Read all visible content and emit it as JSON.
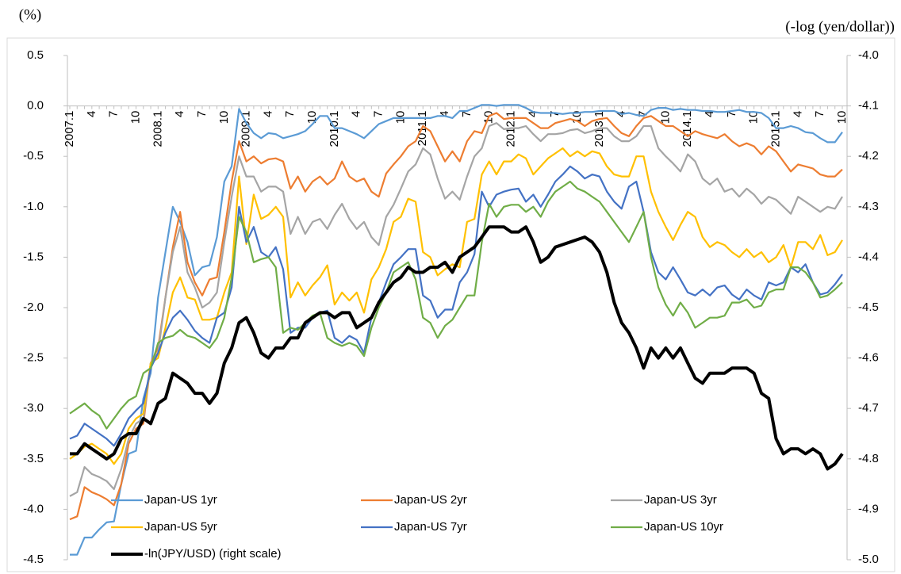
{
  "chart_data": {
    "type": "line",
    "y_label": "(%)",
    "y2_label": "(-log (yen/dollar))",
    "categories": [
      "2007.1",
      null,
      null,
      "4",
      null,
      null,
      "7",
      null,
      null,
      "10",
      null,
      null,
      "2008.1",
      null,
      null,
      "4",
      null,
      null,
      "7",
      null,
      null,
      "10",
      null,
      null,
      "2009.1",
      null,
      null,
      "4",
      null,
      null,
      "7",
      null,
      null,
      "10",
      null,
      null,
      "2010.1",
      null,
      null,
      "4",
      null,
      null,
      "7",
      null,
      null,
      "10",
      null,
      null,
      "2011.1",
      null,
      null,
      "4",
      null,
      null,
      "7",
      null,
      null,
      "10",
      null,
      null,
      "2012.1",
      null,
      null,
      "4",
      null,
      null,
      "7",
      null,
      null,
      "10",
      null,
      null,
      "2013.1",
      null,
      null,
      "4",
      null,
      null,
      "7",
      null,
      null,
      "10",
      null,
      null,
      "2014.1",
      null,
      null,
      "4",
      null,
      null,
      "7",
      null,
      null,
      "10",
      null,
      null,
      "2015.1",
      null,
      null,
      "4",
      null,
      null,
      "7",
      null,
      null,
      "10"
    ],
    "series": [
      {
        "name": "Japan-US 1yr",
        "color": "#5b9bd5",
        "values": [
          -4.45,
          -4.45,
          -4.28,
          -4.28,
          -4.2,
          -4.13,
          -4.12,
          -3.75,
          -3.45,
          -3.42,
          -2.9,
          -2.65,
          -1.9,
          -1.45,
          -1.0,
          -1.15,
          -1.35,
          -1.68,
          -1.6,
          -1.58,
          -1.3,
          -0.75,
          -0.6,
          -0.03,
          -0.17,
          -0.27,
          -0.32,
          -0.27,
          -0.28,
          -0.32,
          -0.3,
          -0.28,
          -0.25,
          -0.18,
          -0.1,
          -0.1,
          -0.22,
          -0.22,
          -0.25,
          -0.28,
          -0.32,
          -0.25,
          -0.18,
          -0.15,
          -0.12,
          -0.12,
          -0.12,
          -0.12,
          -0.12,
          -0.12,
          -0.1,
          -0.1,
          -0.12,
          -0.05,
          -0.05,
          -0.02,
          0.01,
          0.01,
          0.0,
          0.01,
          0.01,
          0.01,
          -0.02,
          -0.06,
          -0.07,
          -0.07,
          -0.07,
          -0.08,
          -0.07,
          -0.07,
          -0.06,
          -0.06,
          -0.05,
          -0.05,
          -0.05,
          -0.08,
          -0.07,
          -0.09,
          -0.1,
          -0.04,
          -0.02,
          -0.02,
          -0.04,
          -0.03,
          -0.04,
          -0.04,
          -0.05,
          -0.05,
          -0.06,
          -0.06,
          -0.05,
          -0.04,
          -0.06,
          -0.06,
          -0.07,
          -0.12,
          -0.22,
          -0.22,
          -0.2,
          -0.22,
          -0.26,
          -0.27,
          -0.32,
          -0.36,
          -0.36,
          -0.26
        ]
      },
      {
        "name": "Japan-US 2yr",
        "color": "#ed7d31",
        "values": [
          -4.1,
          -4.07,
          -3.78,
          -3.83,
          -3.86,
          -3.9,
          -3.96,
          -3.75,
          -3.35,
          -3.2,
          -3.15,
          -2.55,
          -2.4,
          -1.9,
          -1.4,
          -1.05,
          -1.55,
          -1.75,
          -1.88,
          -1.72,
          -1.7,
          -1.25,
          -0.75,
          -0.35,
          -0.55,
          -0.5,
          -0.57,
          -0.53,
          -0.52,
          -0.55,
          -0.82,
          -0.7,
          -0.85,
          -0.75,
          -0.7,
          -0.78,
          -0.72,
          -0.55,
          -0.7,
          -0.75,
          -0.72,
          -0.85,
          -0.9,
          -0.67,
          -0.58,
          -0.5,
          -0.4,
          -0.35,
          -0.2,
          -0.25,
          -0.4,
          -0.55,
          -0.45,
          -0.55,
          -0.35,
          -0.25,
          -0.27,
          -0.1,
          -0.07,
          -0.13,
          -0.12,
          -0.12,
          -0.12,
          -0.17,
          -0.22,
          -0.22,
          -0.17,
          -0.15,
          -0.13,
          -0.15,
          -0.2,
          -0.15,
          -0.13,
          -0.12,
          -0.2,
          -0.27,
          -0.3,
          -0.2,
          -0.12,
          -0.1,
          -0.15,
          -0.2,
          -0.2,
          -0.25,
          -0.3,
          -0.25,
          -0.28,
          -0.3,
          -0.32,
          -0.28,
          -0.35,
          -0.4,
          -0.37,
          -0.4,
          -0.48,
          -0.4,
          -0.45,
          -0.55,
          -0.65,
          -0.58,
          -0.6,
          -0.62,
          -0.68,
          -0.7,
          -0.7,
          -0.63
        ]
      },
      {
        "name": "Japan-US 3yr",
        "color": "#a5a5a5",
        "values": [
          -3.87,
          -3.83,
          -3.58,
          -3.65,
          -3.68,
          -3.72,
          -3.8,
          -3.6,
          -3.3,
          -3.15,
          -3.1,
          -2.55,
          -2.45,
          -1.9,
          -1.45,
          -1.2,
          -1.65,
          -1.8,
          -2.0,
          -1.95,
          -1.85,
          -1.35,
          -0.9,
          -0.5,
          -0.7,
          -0.7,
          -0.85,
          -0.8,
          -0.8,
          -0.85,
          -1.27,
          -1.1,
          -1.27,
          -1.15,
          -1.12,
          -1.22,
          -1.08,
          -0.97,
          -1.12,
          -1.22,
          -1.15,
          -1.3,
          -1.38,
          -1.1,
          -0.98,
          -0.82,
          -0.65,
          -0.58,
          -0.42,
          -0.48,
          -0.72,
          -0.92,
          -0.85,
          -0.93,
          -0.7,
          -0.5,
          -0.42,
          -0.2,
          -0.17,
          -0.23,
          -0.22,
          -0.22,
          -0.2,
          -0.28,
          -0.35,
          -0.28,
          -0.28,
          -0.27,
          -0.24,
          -0.23,
          -0.27,
          -0.25,
          -0.22,
          -0.22,
          -0.3,
          -0.35,
          -0.35,
          -0.3,
          -0.2,
          -0.2,
          -0.42,
          -0.5,
          -0.57,
          -0.65,
          -0.48,
          -0.55,
          -0.72,
          -0.78,
          -0.72,
          -0.85,
          -0.82,
          -0.9,
          -0.82,
          -0.88,
          -0.97,
          -0.9,
          -0.93,
          -1.0,
          -1.07,
          -0.9,
          -0.95,
          -1.0,
          -1.05,
          -1.0,
          -1.02,
          -0.9
        ]
      },
      {
        "name": "Japan-US 5yr",
        "color": "#ffc000",
        "values": [
          -3.5,
          -3.45,
          -3.38,
          -3.35,
          -3.4,
          -3.45,
          -3.55,
          -3.45,
          -3.2,
          -3.1,
          -3.05,
          -2.55,
          -2.5,
          -2.2,
          -1.85,
          -1.7,
          -1.9,
          -1.92,
          -2.12,
          -2.12,
          -2.1,
          -1.85,
          -1.65,
          -0.7,
          -1.37,
          -0.88,
          -1.12,
          -1.08,
          -1.0,
          -1.1,
          -1.9,
          -1.75,
          -1.88,
          -1.78,
          -1.7,
          -1.58,
          -1.97,
          -1.85,
          -1.93,
          -1.85,
          -2.05,
          -1.72,
          -1.6,
          -1.42,
          -1.15,
          -1.1,
          -0.92,
          -0.95,
          -1.45,
          -1.5,
          -1.68,
          -1.62,
          -1.57,
          -1.6,
          -1.15,
          -1.12,
          -0.68,
          -0.55,
          -0.68,
          -0.55,
          -0.55,
          -0.48,
          -0.52,
          -0.68,
          -0.6,
          -0.52,
          -0.47,
          -0.42,
          -0.5,
          -0.45,
          -0.5,
          -0.45,
          -0.47,
          -0.6,
          -0.68,
          -0.7,
          -0.7,
          -0.5,
          -0.5,
          -0.85,
          -1.05,
          -1.2,
          -1.33,
          -1.18,
          -1.05,
          -1.1,
          -1.3,
          -1.4,
          -1.35,
          -1.38,
          -1.45,
          -1.5,
          -1.42,
          -1.5,
          -1.45,
          -1.55,
          -1.5,
          -1.38,
          -1.6,
          -1.35,
          -1.35,
          -1.42,
          -1.28,
          -1.48,
          -1.45,
          -1.33
        ]
      },
      {
        "name": "Japan-US 7yr",
        "color": "#4472c4",
        "values": [
          -3.3,
          -3.27,
          -3.15,
          -3.2,
          -3.25,
          -3.3,
          -3.37,
          -3.25,
          -3.1,
          -3.02,
          -2.95,
          -2.6,
          -2.45,
          -2.25,
          -2.1,
          -2.03,
          -2.12,
          -2.23,
          -2.3,
          -2.35,
          -2.1,
          -2.05,
          -1.8,
          -1.0,
          -1.35,
          -1.2,
          -1.45,
          -1.5,
          -1.4,
          -1.62,
          -2.25,
          -2.2,
          -2.2,
          -2.1,
          -2.05,
          -2.03,
          -2.3,
          -2.35,
          -2.28,
          -2.32,
          -2.45,
          -2.1,
          -1.95,
          -1.75,
          -1.57,
          -1.5,
          -1.42,
          -1.42,
          -1.88,
          -1.93,
          -2.1,
          -2.02,
          -2.02,
          -1.75,
          -1.65,
          -1.47,
          -0.85,
          -1.0,
          -0.88,
          -0.85,
          -0.83,
          -0.82,
          -0.95,
          -0.88,
          -1.0,
          -0.88,
          -0.75,
          -0.68,
          -0.6,
          -0.65,
          -0.72,
          -0.68,
          -0.7,
          -0.85,
          -0.95,
          -1.02,
          -0.8,
          -0.75,
          -1.05,
          -1.45,
          -1.65,
          -1.72,
          -1.6,
          -1.72,
          -1.85,
          -1.88,
          -1.82,
          -1.88,
          -1.8,
          -1.78,
          -1.87,
          -1.92,
          -1.82,
          -1.88,
          -1.92,
          -1.75,
          -1.78,
          -1.75,
          -1.6,
          -1.65,
          -1.57,
          -1.75,
          -1.87,
          -1.85,
          -1.77,
          -1.67
        ]
      },
      {
        "name": "Japan-US 10yr",
        "color": "#70ad47",
        "values": [
          -3.05,
          -3.0,
          -2.95,
          -3.02,
          -3.07,
          -3.2,
          -3.1,
          -3.0,
          -2.92,
          -2.88,
          -2.65,
          -2.6,
          -2.35,
          -2.3,
          -2.28,
          -2.22,
          -2.28,
          -2.3,
          -2.35,
          -2.4,
          -2.3,
          -2.1,
          -1.7,
          -1.1,
          -1.25,
          -1.55,
          -1.52,
          -1.5,
          -1.6,
          -2.25,
          -2.2,
          -2.22,
          -2.15,
          -2.08,
          -2.05,
          -2.3,
          -2.35,
          -2.38,
          -2.35,
          -2.38,
          -2.48,
          -2.2,
          -2.0,
          -1.85,
          -1.65,
          -1.6,
          -1.55,
          -1.72,
          -2.1,
          -2.15,
          -2.3,
          -2.18,
          -2.12,
          -2.0,
          -1.88,
          -1.88,
          -1.35,
          -0.97,
          -1.1,
          -1.0,
          -0.98,
          -0.98,
          -1.05,
          -1.0,
          -1.1,
          -0.95,
          -0.85,
          -0.8,
          -0.75,
          -0.82,
          -0.85,
          -0.9,
          -0.95,
          -1.05,
          -1.15,
          -1.25,
          -1.35,
          -1.2,
          -1.05,
          -1.5,
          -1.8,
          -1.97,
          -2.08,
          -1.95,
          -2.05,
          -2.2,
          -2.15,
          -2.1,
          -2.1,
          -2.08,
          -1.95,
          -1.95,
          -1.92,
          -2.0,
          -1.98,
          -1.85,
          -1.82,
          -1.82,
          -1.6,
          -1.6,
          -1.65,
          -1.75,
          -1.9,
          -1.88,
          -1.82,
          -1.75
        ]
      },
      {
        "name": "-ln(JPY/USD) (right scale)",
        "color": "#000000",
        "axis": "y2",
        "values": [
          -4.79,
          -4.79,
          -4.77,
          -4.78,
          -4.79,
          -4.8,
          -4.79,
          -4.76,
          -4.75,
          -4.75,
          -4.72,
          -4.73,
          -4.69,
          -4.68,
          -4.63,
          -4.64,
          -4.65,
          -4.67,
          -4.67,
          -4.69,
          -4.67,
          -4.61,
          -4.58,
          -4.53,
          -4.52,
          -4.55,
          -4.59,
          -4.6,
          -4.58,
          -4.58,
          -4.56,
          -4.56,
          -4.53,
          -4.52,
          -4.51,
          -4.51,
          -4.52,
          -4.51,
          -4.51,
          -4.54,
          -4.53,
          -4.52,
          -4.49,
          -4.47,
          -4.45,
          -4.44,
          -4.42,
          -4.43,
          -4.43,
          -4.42,
          -4.42,
          -4.41,
          -4.43,
          -4.4,
          -4.39,
          -4.38,
          -4.36,
          -4.34,
          -4.34,
          -4.34,
          -4.35,
          -4.35,
          -4.34,
          -4.37,
          -4.41,
          -4.4,
          -4.38,
          -4.375,
          -4.37,
          -4.365,
          -4.36,
          -4.37,
          -4.39,
          -4.43,
          -4.49,
          -4.53,
          -4.55,
          -4.58,
          -4.62,
          -4.58,
          -4.6,
          -4.58,
          -4.6,
          -4.58,
          -4.61,
          -4.64,
          -4.65,
          -4.63,
          -4.63,
          -4.63,
          -4.62,
          -4.62,
          -4.62,
          -4.63,
          -4.67,
          -4.68,
          -4.76,
          -4.79,
          -4.78,
          -4.78,
          -4.79,
          -4.78,
          -4.79,
          -4.82,
          -4.81,
          -4.79
        ]
      }
    ],
    "ylim": [
      -4.5,
      0.5
    ],
    "yticks": [
      0.5,
      {
        "value": 0,
        "label": "0.0"
      },
      -0.5,
      {
        "value": -1,
        "label": "-1.0"
      },
      -1.5,
      {
        "value": -2,
        "label": "-2.0"
      },
      -2.5,
      {
        "value": -3,
        "label": "-3.0"
      },
      -3.5,
      {
        "value": -4,
        "label": "-4.0"
      },
      -4.5
    ],
    "y2lim": [
      -5.0,
      -4.0
    ],
    "y2ticks": [
      {
        "value": -4,
        "label": "-4.0"
      },
      -4.1,
      -4.2,
      -4.3,
      -4.4,
      -4.5,
      -4.6,
      -4.7,
      -4.8,
      -4.9,
      {
        "value": -5,
        "label": "-5.0"
      }
    ],
    "legend": "bottom"
  }
}
